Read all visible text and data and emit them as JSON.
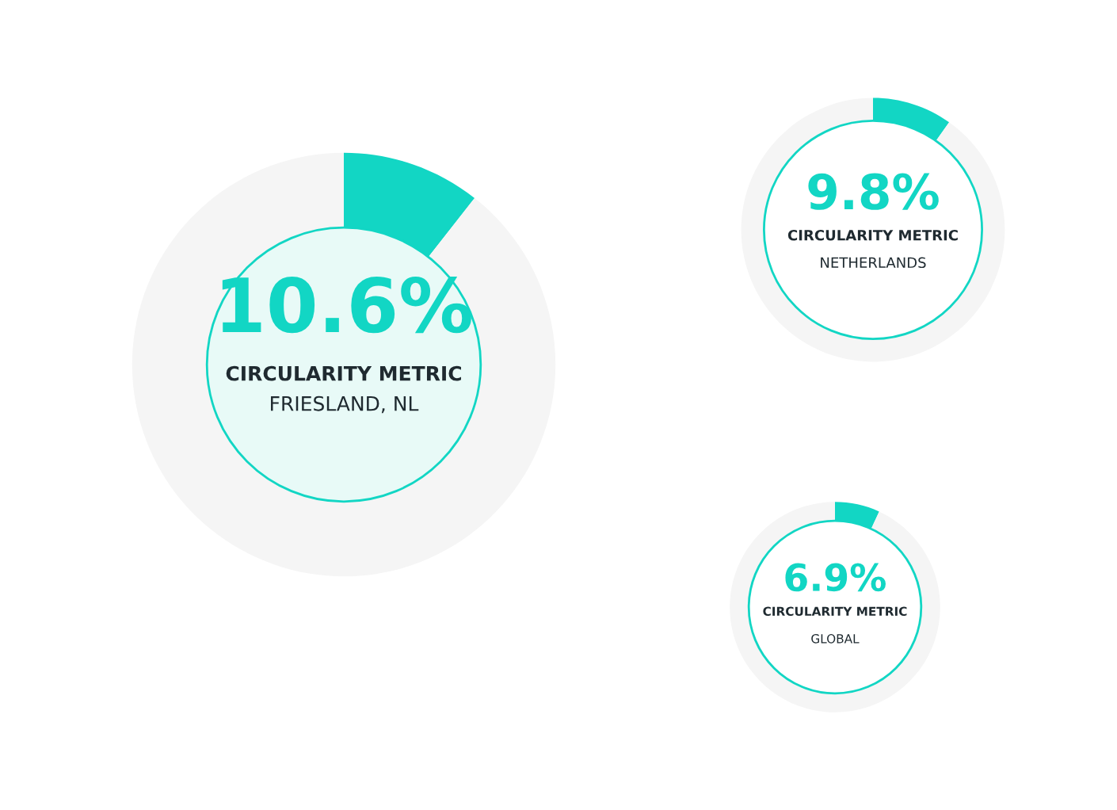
{
  "chart_data": [
    {
      "type": "donut",
      "categories": [
        null,
        null
      ],
      "values": [
        10.6,
        89.4
      ],
      "colors": [
        "#12d6c4",
        "#f5f5f5"
      ],
      "value_labels": [
        "10.6%",
        null
      ],
      "title": "CIRCULARITY METRIC",
      "subtitle": "FRIESLAND, NL"
    },
    {
      "type": "donut",
      "categories": [
        null,
        null
      ],
      "values": [
        9.8,
        90.2
      ],
      "colors": [
        "#12d6c4",
        "#f5f5f5"
      ],
      "value_labels": [
        "9.8%",
        null
      ],
      "title": "CIRCULARITY METRIC",
      "subtitle": "NETHERLANDS"
    },
    {
      "type": "donut",
      "categories": [
        null,
        null
      ],
      "values": [
        6.9,
        93.1
      ],
      "colors": [
        "#12d6c4",
        "#f5f5f5"
      ],
      "value_labels": [
        "6.9%",
        null
      ],
      "title": "CIRCULARITY METRIC",
      "subtitle": "GLOBAL"
    }
  ]
}
